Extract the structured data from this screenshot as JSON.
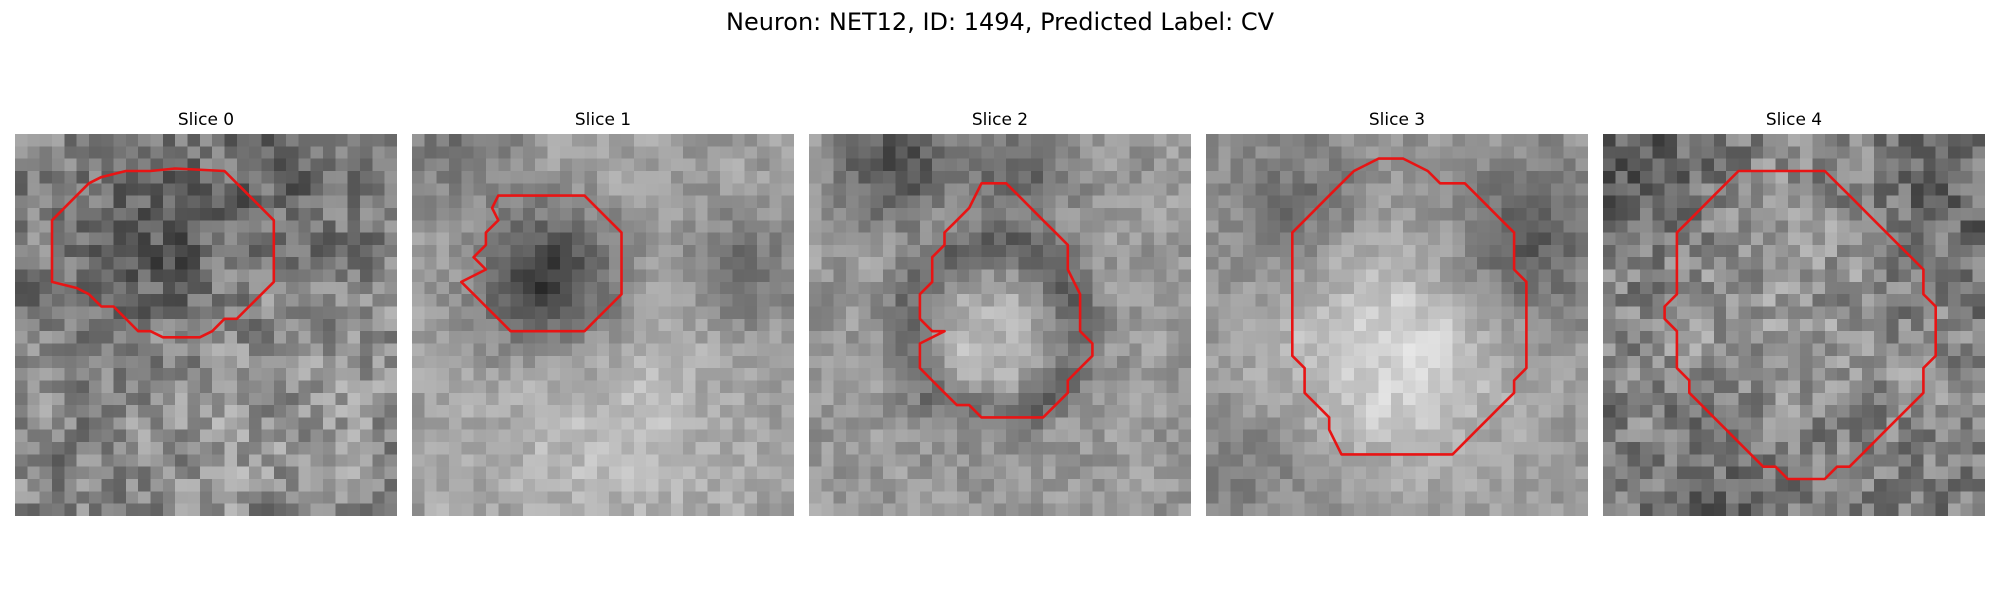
{
  "figure": {
    "title": "Neuron: NET12, ID: 1494, Predicted Label: CV",
    "contour_color": "#e81414"
  },
  "slices": [
    {
      "title": "Slice 0"
    },
    {
      "title": "Slice 1"
    },
    {
      "title": "Slice 2"
    },
    {
      "title": "Slice 3"
    },
    {
      "title": "Slice 4"
    }
  ]
}
